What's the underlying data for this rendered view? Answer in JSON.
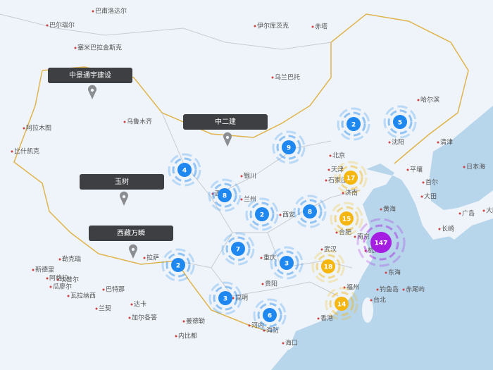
{
  "map": {
    "place_labels": [
      "巴甫洛达尔",
      "巴尔瑙尔",
      "塞米巴拉金斯克",
      "伊尔库茨克",
      "赤塔",
      "乌兰巴托",
      "哈尔滨",
      "阿拉木图",
      "乌鲁木齐",
      "沈阳",
      "清津",
      "北京",
      "天津",
      "石家庄",
      "济南",
      "银川",
      "西宁",
      "兰州",
      "西安",
      "日本海",
      "平壤",
      "首尔",
      "大田",
      "黄海",
      "广岛",
      "大阪",
      "长崎",
      "合肥",
      "南京",
      "杭州",
      "东海",
      "武汉",
      "重庆",
      "贵阳",
      "拉萨",
      "昆明",
      "福州",
      "台北",
      "钓鱼岛",
      "赤尾屿",
      "香港",
      "河内",
      "海防",
      "海口",
      "内比都",
      "曼德勒",
      "加尔各答",
      "达卡",
      "新德里",
      "勒克瑙",
      "坎普尔",
      "瓦拉纳西",
      "巴特那",
      "兰契",
      "阿格拉",
      "瓜廖尔",
      "比什凯克"
    ],
    "markers": [
      {
        "label": "中景通宇建设"
      },
      {
        "label": "中二建"
      },
      {
        "label": "玉树"
      },
      {
        "label": "西藏万瞬"
      }
    ],
    "clusters": [
      {
        "count": "2",
        "color": "#1e88f0"
      },
      {
        "count": "5",
        "color": "#1e88f0"
      },
      {
        "count": "9",
        "color": "#1e88f0"
      },
      {
        "count": "4",
        "color": "#1e88f0"
      },
      {
        "count": "17",
        "color": "#f5b60f"
      },
      {
        "count": "8",
        "color": "#1e88f0"
      },
      {
        "count": "2",
        "color": "#1e88f0"
      },
      {
        "count": "8",
        "color": "#1e88f0"
      },
      {
        "count": "15",
        "color": "#f5b60f"
      },
      {
        "count": "147",
        "color": "#a51de0"
      },
      {
        "count": "7",
        "color": "#1e88f0"
      },
      {
        "count": "3",
        "color": "#1e88f0"
      },
      {
        "count": "18",
        "color": "#f5b60f"
      },
      {
        "count": "2",
        "color": "#1e88f0"
      },
      {
        "count": "3",
        "color": "#1e88f0"
      },
      {
        "count": "14",
        "color": "#f5b60f"
      },
      {
        "count": "6",
        "color": "#1e88f0"
      }
    ]
  }
}
